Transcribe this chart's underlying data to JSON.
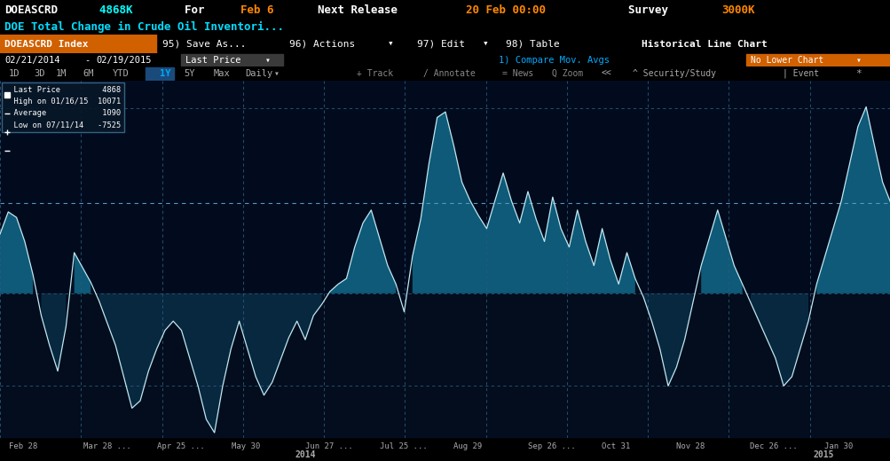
{
  "title_line1_parts": [
    [
      "DOEASCRD",
      "white"
    ],
    [
      "  4868K",
      "#00ffff"
    ],
    [
      "    For ",
      "white"
    ],
    [
      "Feb 6",
      "#ff8800"
    ],
    [
      "    Next Release ",
      "white"
    ],
    [
      "20 Feb 00:00",
      "#ff8800"
    ],
    [
      "      Survey ",
      "white"
    ],
    [
      "3000K",
      "#ff8800"
    ]
  ],
  "title_line2": "DOE Total Change in Crude Oil Inventori...",
  "legend_items": [
    [
      "Last Price",
      "4868"
    ],
    [
      "High on 01/16/15",
      "10071"
    ],
    [
      "Average",
      "1090"
    ],
    [
      "Low on 07/11/14",
      "-7525"
    ]
  ],
  "x_labels": [
    "Feb 28",
    "Mar 28 ...",
    "Apr 25 ...",
    "May 30",
    "Jun 27 ...",
    "Jul 25 ...",
    "Aug 29",
    "Sep 26 ...",
    "Oct 31",
    "Nov 28",
    "Dec 26 ...",
    "Jan 30"
  ],
  "y_ticks": [
    10000,
    0,
    -5000
  ],
  "last_price": 4868,
  "ylim": [
    -7800,
    11500
  ],
  "bg_color": "#000000",
  "chart_bg_color": "#020B1E",
  "grid_color": "#2a5a7a",
  "line_color": "#c0e8f0",
  "toolbar_bg": "#cc2200",
  "orange_btn_bg": "#d06000",
  "values": [
    3200,
    4400,
    4100,
    2800,
    1000,
    -1200,
    -2800,
    -4200,
    -1800,
    2200,
    1400,
    600,
    -400,
    -1600,
    -2800,
    -4500,
    -6200,
    -5800,
    -4200,
    -3000,
    -2000,
    -1500,
    -2000,
    -3500,
    -5000,
    -6800,
    -7525,
    -5000,
    -3000,
    -1500,
    -3000,
    -4500,
    -5500,
    -4800,
    -3600,
    -2400,
    -1500,
    -2500,
    -1200,
    -600,
    100,
    500,
    800,
    2500,
    3800,
    4500,
    3000,
    1500,
    500,
    -1000,
    2000,
    4000,
    7000,
    9500,
    9800,
    8000,
    6000,
    5000,
    4200,
    3500,
    5000,
    6500,
    5000,
    3800,
    5500,
    4000,
    2800,
    5200,
    3500,
    2500,
    4500,
    2800,
    1500,
    3500,
    1800,
    500,
    2200,
    800,
    -200,
    -1500,
    -3000,
    -5000,
    -4000,
    -2500,
    -500,
    1500,
    3000,
    4500,
    3000,
    1500,
    500,
    -500,
    -1500,
    -2500,
    -3500,
    -5000,
    -4500,
    -3000,
    -1500,
    500,
    2000,
    3500,
    5000,
    7000,
    9000,
    10071,
    8000,
    6000,
    4868
  ]
}
